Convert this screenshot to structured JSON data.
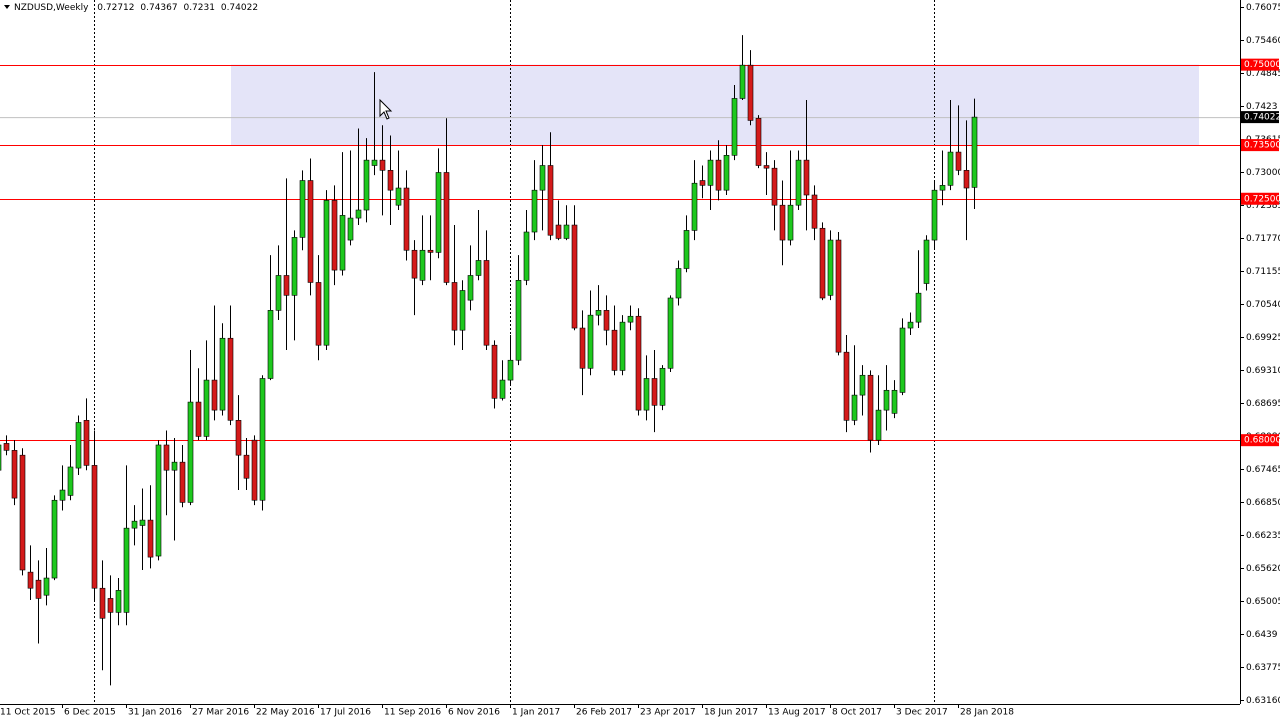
{
  "chart_data": {
    "type": "candlestick",
    "title": "NZDUSD,Weekly",
    "categories": [
      "11 Oct 2015",
      null,
      null,
      null,
      null,
      null,
      null,
      null,
      "6 Dec 2015",
      null,
      null,
      null,
      null,
      null,
      null,
      null,
      "31 Jan 2016",
      null,
      null,
      null,
      null,
      null,
      null,
      null,
      "27 Mar 2016",
      null,
      null,
      null,
      null,
      null,
      null,
      null,
      "22 May 2016",
      null,
      null,
      null,
      null,
      null,
      null,
      null,
      "17 Jul 2016",
      null,
      null,
      null,
      null,
      null,
      null,
      null,
      "11 Sep 2016",
      null,
      null,
      null,
      null,
      null,
      null,
      null,
      "6 Nov 2016",
      null,
      null,
      null,
      null,
      null,
      null,
      null,
      "1 Jan 2017",
      null,
      null,
      null,
      null,
      null,
      null,
      null,
      "26 Feb 2017",
      null,
      null,
      null,
      null,
      null,
      null,
      null,
      "23 Apr 2017",
      null,
      null,
      null,
      null,
      null,
      null,
      null,
      "18 Jun 2017",
      null,
      null,
      null,
      null,
      null,
      null,
      null,
      "13 Aug 2017",
      null,
      null,
      null,
      null,
      null,
      null,
      null,
      "8 Oct 2017",
      null,
      null,
      null,
      null,
      null,
      null,
      null,
      "3 Dec 2017",
      null,
      null,
      null,
      null,
      null,
      null,
      null,
      "28 Jan 2018",
      null,
      null
    ],
    "open": [
      0.6744,
      0.6794,
      0.6781,
      0.6772,
      0.6554,
      0.6539,
      0.6511,
      0.6543,
      0.6688,
      0.6697,
      0.6748,
      0.6837,
      0.6753,
      0.6524,
      0.6505,
      0.6479,
      0.6479,
      0.6636,
      0.6641,
      0.6651,
      0.6584,
      0.6791,
      0.6744,
      0.6759,
      0.6684,
      0.6871,
      0.6807,
      0.6912,
      0.6856,
      0.699,
      0.6837,
      0.6772,
      0.68,
      0.6688,
      0.6915,
      0.7042,
      0.7107,
      0.707,
      0.7178,
      0.7284,
      0.7094,
      0.6977,
      0.7247,
      0.7117,
      0.7173,
      0.7214,
      0.7229,
      0.7312,
      0.7322,
      0.7303,
      0.7238,
      0.727,
      0.7154,
      0.7098,
      0.7154,
      0.715,
      0.7299,
      0.7094,
      0.7005,
      0.7061,
      0.7107,
      0.7135,
      0.6977,
      0.6878,
      0.6912,
      0.6949,
      0.7098,
      0.7188,
      0.7266,
      0.7312,
      0.7201,
      0.7176,
      0.7201,
      0.7009,
      0.6934,
      0.7033,
      0.7042,
      0.7005,
      0.693,
      0.702,
      0.7031,
      0.6856,
      0.6915,
      0.6865,
      0.6934,
      0.7065,
      0.712,
      0.7191,
      0.7284,
      0.7275,
      0.7322,
      0.7266,
      0.7331,
      0.7437,
      0.7499,
      0.74,
      0.7312,
      0.7307,
      0.7238,
      0.7173,
      0.7238,
      0.7322,
      0.7257,
      0.7195,
      0.707,
      0.7173,
      0.6964,
      0.6837,
      0.6884,
      0.6921,
      0.68,
      0.6856,
      0.685,
      0.6889,
      0.7009,
      0.702,
      0.7092,
      0.7173,
      0.7266,
      0.7275,
      0.7337,
      0.7303,
      0.72712
    ],
    "high": [
      0.6865,
      0.6809,
      0.68,
      0.6785,
      0.6604,
      0.6576,
      0.6599,
      0.6697,
      0.6753,
      0.6791,
      0.6846,
      0.6878,
      0.6818,
      0.6576,
      0.6548,
      0.6543,
      0.6753,
      0.6679,
      0.671,
      0.6716,
      0.68,
      0.6818,
      0.6804,
      0.6791,
      0.6968,
      0.6934,
      0.6986,
      0.7051,
      0.7018,
      0.7051,
      0.6884,
      0.6804,
      0.6809,
      0.6921,
      0.7145,
      0.7163,
      0.7288,
      0.7191,
      0.7303,
      0.7325,
      0.7145,
      0.7266,
      0.7275,
      0.7337,
      0.734,
      0.7381,
      0.7363,
      0.7486,
      0.7387,
      0.7368,
      0.734,
      0.7303,
      0.7173,
      0.7219,
      0.7219,
      0.7344,
      0.74,
      0.7201,
      0.7098,
      0.7163,
      0.7229,
      0.7191,
      0.6986,
      0.6949,
      0.6996,
      0.7145,
      0.7229,
      0.7322,
      0.735,
      0.7374,
      0.7247,
      0.7238,
      0.7238,
      0.7042,
      0.7079,
      0.7089,
      0.707,
      0.7051,
      0.7033,
      0.7051,
      0.7046,
      0.6958,
      0.6968,
      0.694,
      0.707,
      0.7135,
      0.7219,
      0.7322,
      0.7312,
      0.734,
      0.7359,
      0.735,
      0.7462,
      0.7555,
      0.7527,
      0.7406,
      0.7337,
      0.7322,
      0.7284,
      0.734,
      0.734,
      0.7434,
      0.7275,
      0.7206,
      0.7191,
      0.7188,
      0.6996,
      0.6977,
      0.694,
      0.693,
      0.6921,
      0.694,
      0.6912,
      0.7027,
      0.7038,
      0.7154,
      0.7182,
      0.7284,
      0.734,
      0.7434,
      0.7424,
      0.7396,
      0.74367
    ],
    "low": [
      0.6688,
      0.6772,
      0.6679,
      0.6548,
      0.6502,
      0.6421,
      0.6492,
      0.6539,
      0.6669,
      0.6688,
      0.6735,
      0.6744,
      0.6502,
      0.6371,
      0.6343,
      0.6455,
      0.6455,
      0.6604,
      0.6558,
      0.6561,
      0.6576,
      0.666,
      0.6613,
      0.6675,
      0.6679,
      0.68,
      0.68,
      0.6837,
      0.6846,
      0.6828,
      0.6707,
      0.6707,
      0.6679,
      0.6669,
      0.6912,
      0.7024,
      0.6968,
      0.6986,
      0.7154,
      0.707,
      0.6949,
      0.6968,
      0.7089,
      0.7107,
      0.7163,
      0.7201,
      0.7206,
      0.7294,
      0.7219,
      0.7201,
      0.7229,
      0.7135,
      0.7033,
      0.7089,
      0.7098,
      0.7139,
      0.7089,
      0.6977,
      0.6968,
      0.7042,
      0.7098,
      0.6968,
      0.6859,
      0.6874,
      0.6902,
      0.694,
      0.7089,
      0.7173,
      0.7191,
      0.7173,
      0.7173,
      0.7173,
      0.7005,
      0.6884,
      0.6921,
      0.7014,
      0.6977,
      0.6921,
      0.6921,
      0.7005,
      0.6846,
      0.6837,
      0.6815,
      0.6856,
      0.6927,
      0.7051,
      0.7113,
      0.7173,
      0.7251,
      0.7229,
      0.7247,
      0.7257,
      0.7322,
      0.7434,
      0.7387,
      0.7307,
      0.7257,
      0.7191,
      0.7126,
      0.7163,
      0.7229,
      0.7191,
      0.7173,
      0.7061,
      0.7061,
      0.6958,
      0.6815,
      0.6828,
      0.6846,
      0.6777,
      0.6791,
      0.6818,
      0.6841,
      0.6884,
      0.6996,
      0.7009,
      0.7079,
      0.7158,
      0.7238,
      0.7266,
      0.7294,
      0.7173,
      0.7231
    ],
    "close": [
      0.6791,
      0.6781,
      0.6692,
      0.6558,
      0.6524,
      0.6505,
      0.6543,
      0.6688,
      0.6707,
      0.675,
      0.6833,
      0.6753,
      0.6524,
      0.6468,
      0.6479,
      0.652,
      0.6636,
      0.6649,
      0.6651,
      0.6582,
      0.6791,
      0.6744,
      0.6759,
      0.6684,
      0.6871,
      0.6807,
      0.6912,
      0.6856,
      0.699,
      0.6837,
      0.6772,
      0.6729,
      0.6688,
      0.6915,
      0.7042,
      0.7107,
      0.707,
      0.7178,
      0.7284,
      0.7094,
      0.6977,
      0.7247,
      0.7117,
      0.7219,
      0.7214,
      0.7229,
      0.7322,
      0.7322,
      0.7303,
      0.7266,
      0.727,
      0.7154,
      0.7102,
      0.7154,
      0.715,
      0.7299,
      0.7094,
      0.7005,
      0.7079,
      0.7107,
      0.7135,
      0.6977,
      0.6878,
      0.6912,
      0.6949,
      0.7098,
      0.7188,
      0.7266,
      0.7312,
      0.7182,
      0.7176,
      0.7201,
      0.7009,
      0.6934,
      0.7033,
      0.7042,
      0.7005,
      0.693,
      0.702,
      0.7031,
      0.6856,
      0.6915,
      0.6865,
      0.6934,
      0.7065,
      0.712,
      0.7191,
      0.7279,
      0.7275,
      0.7322,
      0.7266,
      0.7331,
      0.7437,
      0.7499,
      0.7396,
      0.7312,
      0.7307,
      0.7238,
      0.7173,
      0.7238,
      0.7322,
      0.7257,
      0.7195,
      0.7065,
      0.7173,
      0.6964,
      0.6837,
      0.6884,
      0.6921,
      0.68,
      0.6856,
      0.6893,
      0.6893,
      0.7009,
      0.702,
      0.7074,
      0.7173,
      0.7266,
      0.7275,
      0.7337,
      0.7303,
      0.727,
      0.74022
    ],
    "up_color": "#1ec81e",
    "down_color": "#d41a1a",
    "wick_color": "#000000",
    "ylim": [
      0.63082,
      0.76205
    ],
    "yticks": [
      0.76075,
      {
        "value": 0.7546,
        "label": "0.75460"
      },
      0.74845,
      0.7423,
      0.73615,
      {
        "value": 0.73,
        "label": "0.73000"
      },
      0.72385,
      {
        "value": 0.7177,
        "label": "0.71770"
      },
      0.71155,
      {
        "value": 0.7054,
        "label": "0.70540"
      },
      0.69925,
      {
        "value": 0.6931,
        "label": "0.69310"
      },
      0.68695,
      {
        "value": 0.6808,
        "label": "0.68080"
      },
      0.67465,
      {
        "value": 0.6685,
        "label": "0.66850"
      },
      0.66235,
      {
        "value": 0.6562,
        "label": "0.65620"
      },
      0.65005,
      0.6439,
      0.63775,
      {
        "value": 0.6316,
        "label": "0.63160"
      }
    ],
    "levels": [
      {
        "value": 0.75,
        "label": "0.75000"
      },
      {
        "value": 0.735,
        "label": "0.73500"
      },
      {
        "value": 0.725,
        "label": "0.72500"
      },
      {
        "value": 0.68,
        "label": "0.68000"
      }
    ],
    "level_color": "#ff0000",
    "zone_color": "#e4e4f8"
  }
}
